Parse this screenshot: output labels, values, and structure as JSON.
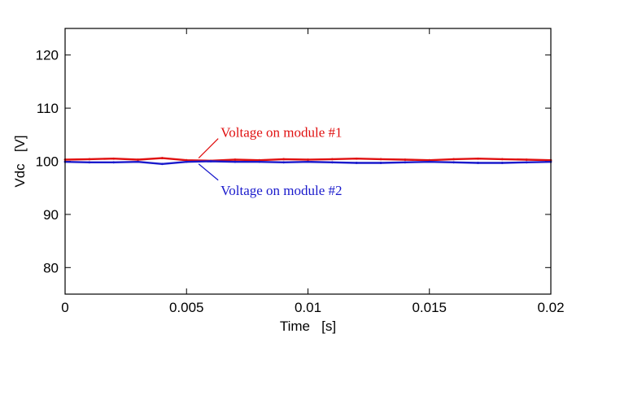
{
  "chart_data": {
    "type": "line",
    "title": "",
    "xlabel": "Time   [s]",
    "ylabel": "Vdc   [V]",
    "xlim": [
      0,
      0.02
    ],
    "ylim": [
      75,
      125
    ],
    "x_ticks": [
      0,
      0.005,
      0.01,
      0.015,
      0.02
    ],
    "x_tick_labels": [
      "0",
      "0.005",
      "0.01",
      "0.015",
      "0.02"
    ],
    "y_ticks": [
      80,
      90,
      100,
      110,
      120
    ],
    "y_tick_labels": [
      "80",
      "90",
      "100",
      "110",
      "120"
    ],
    "grid": false,
    "series": [
      {
        "name": "Voltage on module #1",
        "color": "#e01010",
        "x": [
          0,
          0.001,
          0.002,
          0.003,
          0.004,
          0.005,
          0.006,
          0.007,
          0.008,
          0.009,
          0.01,
          0.011,
          0.012,
          0.013,
          0.014,
          0.015,
          0.016,
          0.017,
          0.018,
          0.019,
          0.02
        ],
        "values": [
          100.3,
          100.4,
          100.5,
          100.3,
          100.6,
          100.2,
          100.1,
          100.3,
          100.2,
          100.4,
          100.3,
          100.4,
          100.5,
          100.4,
          100.3,
          100.2,
          100.4,
          100.5,
          100.4,
          100.3,
          100.2
        ]
      },
      {
        "name": "Voltage on module #2",
        "color": "#1a1acc",
        "x": [
          0,
          0.001,
          0.002,
          0.003,
          0.004,
          0.005,
          0.006,
          0.007,
          0.008,
          0.009,
          0.01,
          0.011,
          0.012,
          0.013,
          0.014,
          0.015,
          0.016,
          0.017,
          0.018,
          0.019,
          0.02
        ],
        "values": [
          99.9,
          99.8,
          99.8,
          99.9,
          99.5,
          99.9,
          100.0,
          99.9,
          99.9,
          99.8,
          99.9,
          99.8,
          99.7,
          99.7,
          99.8,
          99.9,
          99.8,
          99.7,
          99.7,
          99.8,
          99.9
        ]
      }
    ],
    "annotations": [
      {
        "text": "Voltage on module #1",
        "color": "#e01010",
        "x": 0.0055,
        "y": 100.6
      },
      {
        "text": "Voltage on module #2",
        "color": "#1a1acc",
        "x": 0.0055,
        "y": 99.5
      }
    ]
  }
}
